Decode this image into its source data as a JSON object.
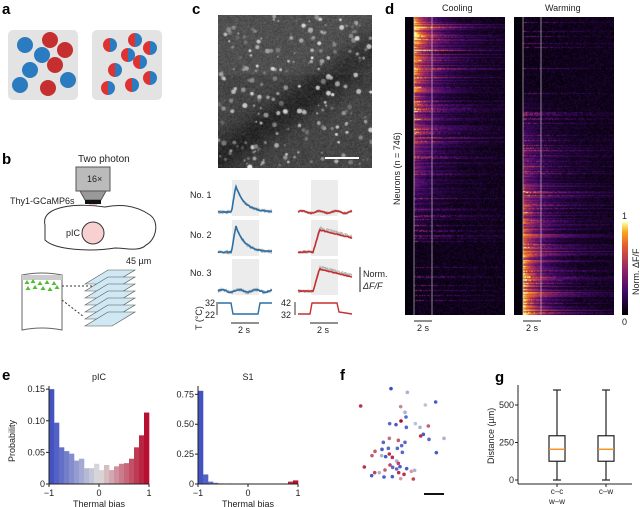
{
  "panel_labels": {
    "a": "a",
    "b": "b",
    "c": "c",
    "d": "d",
    "e": "e",
    "f": "f",
    "g": "g"
  },
  "colors": {
    "cooling": "#2a6fa5",
    "warming": "#c62f2f",
    "bias_neg": "#3b4cc0",
    "bias_mid": "#dddddd",
    "bias_pos": "#b40426",
    "median": "#f28e1c"
  },
  "panel_b": {
    "microscope": "Two photon",
    "objective": "16×",
    "mouse_line": "Thy1-GCaMP6s",
    "region": "pIC",
    "plane_spacing": "45 µm"
  },
  "panel_c": {
    "neurons": [
      "No. 1",
      "No. 2",
      "No. 3"
    ],
    "temp_axis_label": "T (°C)",
    "cooling_temps": [
      "32",
      "22"
    ],
    "warming_temps": [
      "42",
      "32"
    ],
    "time_scale": "2 s",
    "scale_label_1": "Norm.",
    "scale_label_2": "ΔF/F"
  },
  "panel_d": {
    "titles": [
      "Cooling",
      "Warming"
    ],
    "ylabel": "Neurons (n = 746)",
    "time_scale": "2 s",
    "colorbar_max": "1",
    "colorbar_min": "0",
    "colorbar_label": "Norm. ΔF/F"
  },
  "panel_f": {
    "x_axis_note": "",
    "legend": ""
  },
  "chart_data": [
    {
      "type": "bar",
      "title": "pIC",
      "xlabel": "Thermal bias",
      "ylabel": "Probability",
      "bin_edges_start": -1,
      "bin_width": 0.1,
      "values": [
        0.15,
        0.097,
        0.058,
        0.052,
        0.048,
        0.037,
        0.04,
        0.025,
        0.025,
        0.032,
        0.022,
        0.03,
        0.022,
        0.028,
        0.032,
        0.033,
        0.04,
        0.058,
        0.077,
        0.113
      ],
      "xlim": [
        -1,
        1
      ],
      "ylim": [
        0,
        0.155
      ],
      "xticks": [
        "−1",
        "0",
        "1"
      ],
      "yticks": [
        "0",
        "0.05",
        "0.10",
        "0.15"
      ],
      "ytick_values": [
        0,
        0.05,
        0.1,
        0.15
      ]
    },
    {
      "type": "bar",
      "title": "S1",
      "xlabel": "Thermal bias",
      "ylabel": "",
      "bin_edges_start": -1,
      "bin_width": 0.1,
      "values": [
        0.78,
        0.08,
        0.02,
        0.01,
        0.005,
        0,
        0.005,
        0,
        0,
        0,
        0,
        0,
        0,
        0,
        0,
        0,
        0,
        0,
        0.02,
        0.03
      ],
      "xlim": [
        -1,
        1
      ],
      "ylim": [
        0,
        0.82
      ],
      "xticks": [
        "−1",
        "0",
        "1"
      ],
      "yticks": [
        "0",
        "0.25",
        "0.50",
        "0.75"
      ],
      "ytick_values": [
        0,
        0.25,
        0.5,
        0.75
      ]
    },
    {
      "type": "scatter",
      "title": "",
      "points": [
        [
          113,
          16,
          -1
        ],
        [
          162,
          27,
          -0.3
        ],
        [
          22,
          68,
          0.8
        ],
        [
          142,
          70,
          0.4
        ],
        [
          247,
          56,
          -0.9
        ],
        [
          216,
          65,
          -0.2
        ],
        [
          155,
          87,
          -0.3
        ],
        [
          158,
          101,
          -0.8
        ],
        [
          143,
          113,
          1
        ],
        [
          109,
          121,
          -0.8
        ],
        [
          128,
          124,
          -0.9
        ],
        [
          159,
          132,
          -0.8
        ],
        [
          186,
          121,
          -0.2
        ],
        [
          200,
          132,
          -0.3
        ],
        [
          225,
          128,
          0.6
        ],
        [
          210,
          153,
          -0.9
        ],
        [
          202,
          158,
          0.8
        ],
        [
          272,
          165,
          -0.3
        ],
        [
          227,
          168,
          -0.8
        ],
        [
          108,
          165,
          0.5
        ],
        [
          135,
          171,
          0.6
        ],
        [
          155,
          177,
          -0.8
        ],
        [
          90,
          177,
          -0.8
        ],
        [
          145,
          187,
          -0.8
        ],
        [
          105,
          195,
          -0.8
        ],
        [
          132,
          195,
          -0.8
        ],
        [
          86,
          198,
          -0.9
        ],
        [
          65,
          204,
          0.6
        ],
        [
          147,
          207,
          -0.8
        ],
        [
          108,
          212,
          0.8
        ],
        [
          56,
          217,
          0.6
        ],
        [
          85,
          217,
          -0.3
        ],
        [
          97,
          220,
          -0.9
        ],
        [
          117,
          222,
          0.8
        ],
        [
          249,
          208,
          -0.9
        ],
        [
          130,
          233,
          -0.3
        ],
        [
          110,
          245,
          0.7
        ],
        [
          118,
          252,
          -0.8
        ],
        [
          130,
          257,
          -0.8
        ],
        [
          140,
          250,
          -0.9
        ],
        [
          33,
          251,
          0.8
        ],
        [
          160,
          256,
          -0.9
        ],
        [
          184,
          261,
          -0.3
        ],
        [
          174,
          264,
          0.3
        ],
        [
          64,
          268,
          0.7
        ],
        [
          78,
          268,
          -0.3
        ],
        [
          95,
          260,
          0.6
        ],
        [
          136,
          268,
          0.8
        ],
        [
          152,
          273,
          0.8
        ],
        [
          55,
          277,
          -0.9
        ],
        [
          92,
          281,
          -0.9
        ],
        [
          117,
          280,
          -0.9
        ],
        [
          142,
          286,
          0.3
        ],
        [
          180,
          287,
          0.7
        ],
        [
          135,
          240,
          0.7
        ]
      ]
    },
    {
      "type": "box",
      "ylabel": "Distance (µm)",
      "categories": [
        "c–c|w–w",
        "c–w"
      ],
      "category_lines": [
        [
          "c–c",
          "w–w"
        ],
        [
          "c–w"
        ]
      ],
      "boxes": [
        {
          "min": 0,
          "q1": 125,
          "median": 205,
          "q3": 295,
          "max": 600
        },
        {
          "min": 0,
          "q1": 125,
          "median": 205,
          "q3": 295,
          "max": 600
        }
      ],
      "ylim": [
        0,
        633
      ],
      "yticks": [
        "0",
        "250",
        "500"
      ],
      "ytick_values": [
        0,
        250,
        500
      ]
    }
  ]
}
